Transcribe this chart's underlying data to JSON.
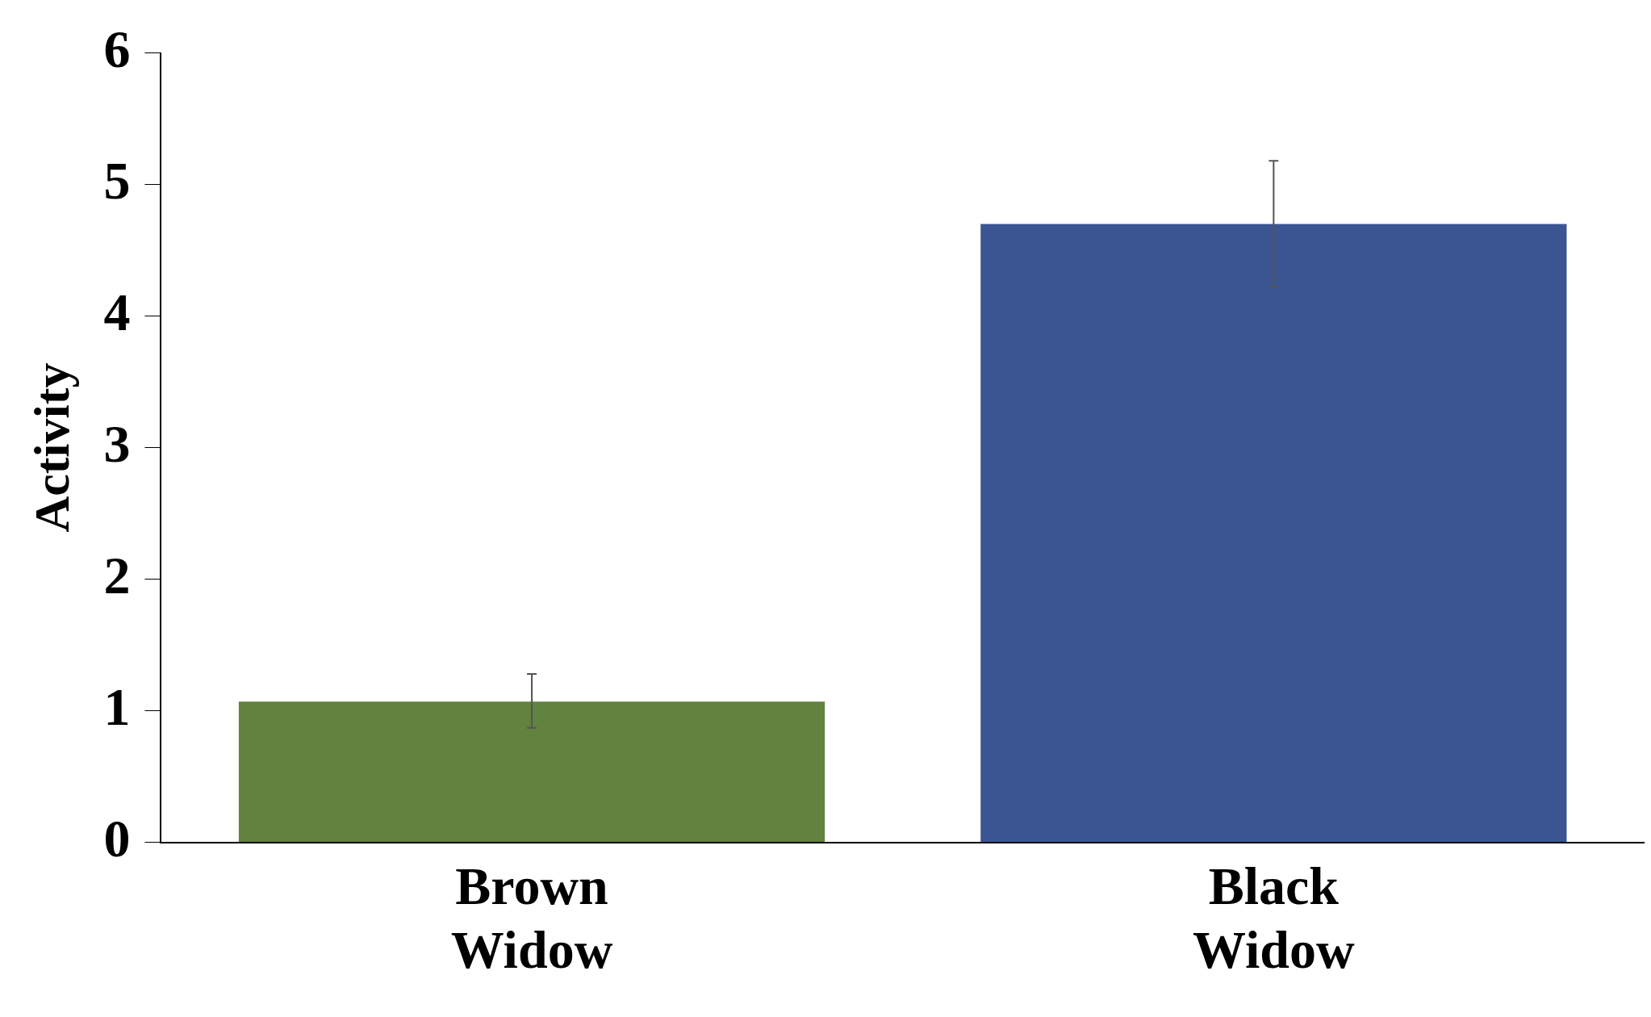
{
  "chart_data": {
    "type": "bar",
    "ylabel": "Activity",
    "categories": [
      "Brown Widow",
      "Black Widow"
    ],
    "values": [
      1.07,
      4.7
    ],
    "colors": [
      "#62823f",
      "#3a5592"
    ],
    "errors": [
      [
        0.87,
        1.28
      ],
      [
        4.22,
        5.18
      ]
    ],
    "ylim": [
      0,
      6
    ],
    "yticks": [
      0,
      1,
      2,
      3,
      4,
      5,
      6
    ],
    "grid": false,
    "legend": false
  }
}
